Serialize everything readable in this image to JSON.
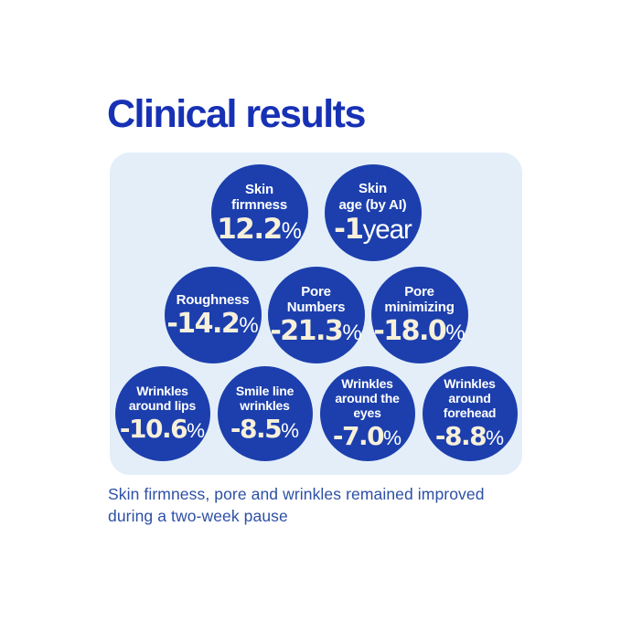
{
  "title": "Clinical results",
  "caption": {
    "line1": "Skin firmness, pore and wrinkles remained improved",
    "line2": "during a two-week pause"
  },
  "colors": {
    "title_blue": "#1731b5",
    "panel_bg": "#e3eef9",
    "bubble_blue": "#1c3fad",
    "value_cream": "#f7f0da",
    "label_white": "#ffffff",
    "caption_blue": "#2d4fa6",
    "page_bg": "#ffffff"
  },
  "rows": [
    {
      "circles": [
        {
          "label_lines": [
            "Skin",
            "firmness"
          ],
          "value": "12.2",
          "suffix": "%"
        },
        {
          "label_lines": [
            "Skin",
            "age (by AI)"
          ],
          "value": "-1",
          "suffix": "year"
        }
      ]
    },
    {
      "circles": [
        {
          "label_lines": [
            "Roughness"
          ],
          "value": "-14.2",
          "suffix": "%"
        },
        {
          "label_lines": [
            "Pore",
            "Numbers"
          ],
          "value": "-21.3",
          "suffix": "%"
        },
        {
          "label_lines": [
            "Pore",
            "minimizing"
          ],
          "value": "-18.0",
          "suffix": "%"
        }
      ]
    },
    {
      "circles": [
        {
          "label_lines": [
            "Wrinkles",
            "around lips"
          ],
          "value": "-10.6",
          "suffix": "%"
        },
        {
          "label_lines": [
            "Smile line",
            "wrinkles"
          ],
          "value": "-8.5",
          "suffix": "%"
        },
        {
          "label_lines": [
            "Wrinkles",
            "around the",
            "eyes"
          ],
          "value": "-7.0",
          "suffix": "%"
        },
        {
          "label_lines": [
            "Wrinkles",
            "around",
            "forehead"
          ],
          "value": "-8.8",
          "suffix": "%"
        }
      ]
    }
  ],
  "chart_data": {
    "type": "bar",
    "title": "Clinical results",
    "categories": [
      "Skin firmness",
      "Skin age (by AI)",
      "Roughness",
      "Pore Numbers",
      "Pore minimizing",
      "Wrinkles around lips",
      "Smile line wrinkles",
      "Wrinkles around the eyes",
      "Wrinkles around forehead"
    ],
    "values": [
      12.2,
      -1,
      -14.2,
      -21.3,
      -18.0,
      -10.6,
      -8.5,
      -7.0,
      -8.8
    ],
    "units": [
      "%",
      "year",
      "%",
      "%",
      "%",
      "%",
      "%",
      "%",
      "%"
    ],
    "data_labels": [
      "12.2%",
      "-1year",
      "-14.2%",
      "-21.3%",
      "-18.0%",
      "-10.6%",
      "-8.5%",
      "-7.0%",
      "-8.8%"
    ],
    "annotations": [
      "Skin firmness, pore and wrinkles remained improved during a two-week pause"
    ],
    "xlabel": "",
    "ylabel": "",
    "legend_position": "none",
    "grid": false
  }
}
